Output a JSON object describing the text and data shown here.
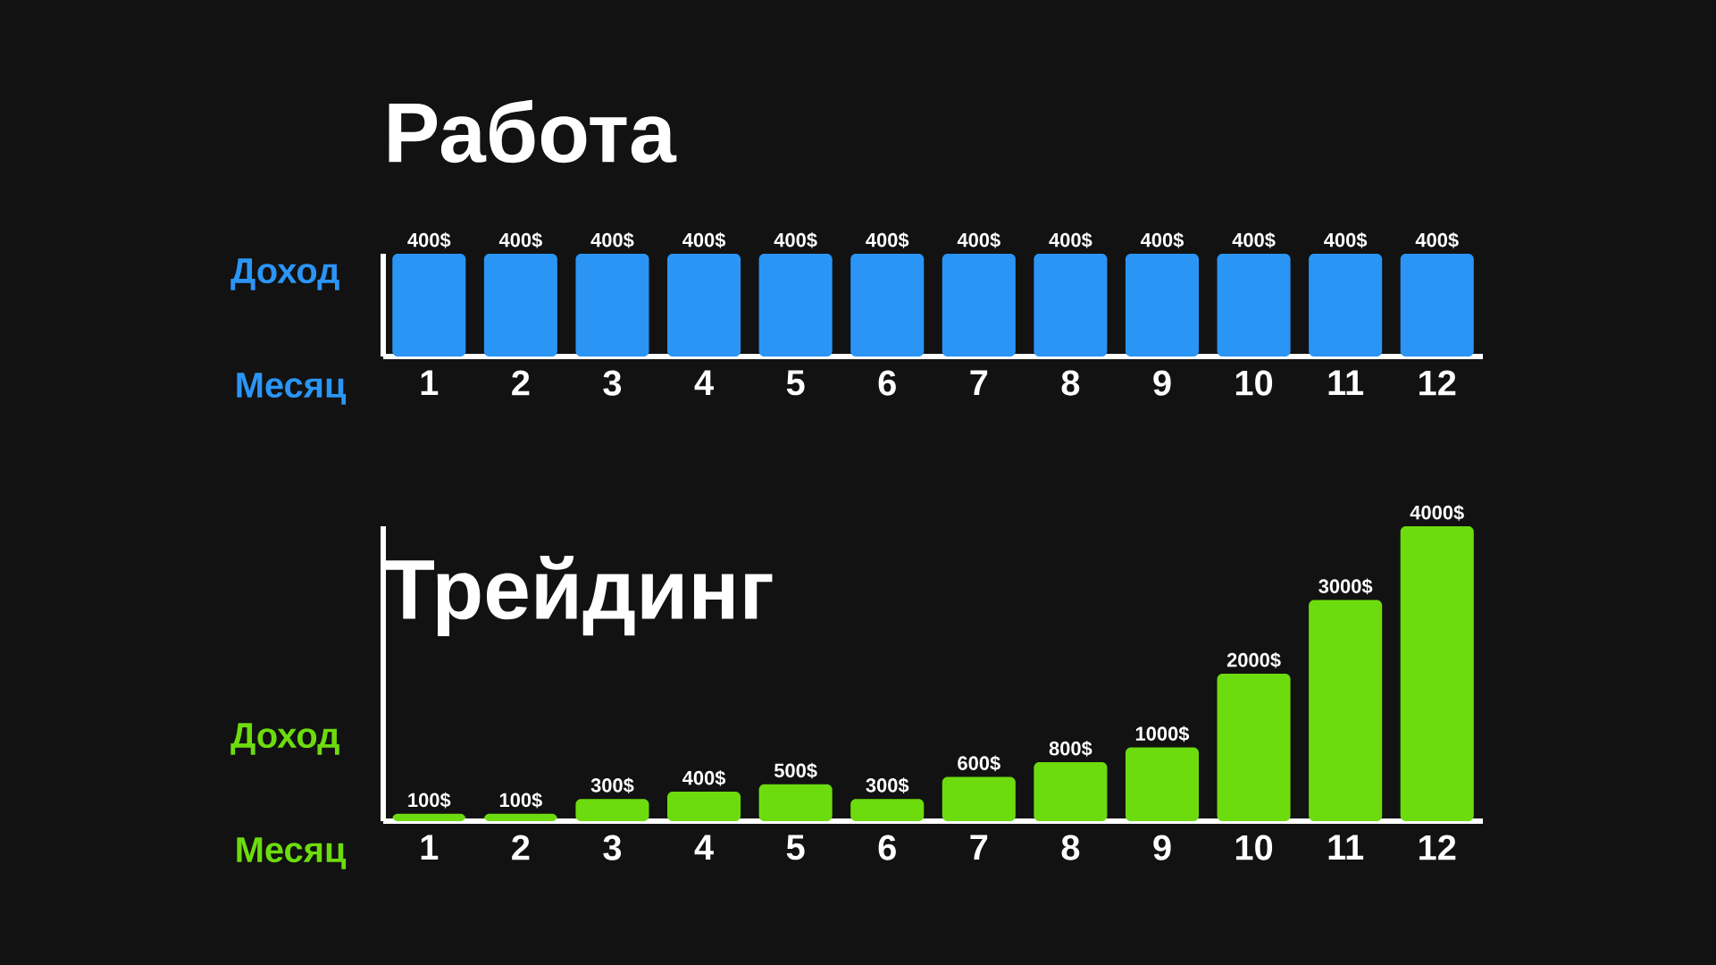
{
  "chart_data": [
    {
      "type": "bar",
      "title": "Работа",
      "ylabel": "Доход",
      "xlabel": "Месяц",
      "categories": [
        "1",
        "2",
        "3",
        "4",
        "5",
        "6",
        "7",
        "8",
        "9",
        "10",
        "11",
        "12"
      ],
      "color": "#2b95f6",
      "values": [
        400,
        400,
        400,
        400,
        400,
        400,
        400,
        400,
        400,
        400,
        400,
        400
      ],
      "value_labels": [
        "400$",
        "400$",
        "400$",
        "400$",
        "400$",
        "400$",
        "400$",
        "400$",
        "400$",
        "400$",
        "400$",
        "400$"
      ]
    },
    {
      "type": "bar",
      "title": "Трейдинг",
      "ylabel": "Доход",
      "xlabel": "Месяц",
      "categories": [
        "1",
        "2",
        "3",
        "4",
        "5",
        "6",
        "7",
        "8",
        "9",
        "10",
        "11",
        "12"
      ],
      "color": "#6ddc0e",
      "values": [
        100,
        100,
        300,
        400,
        500,
        300,
        600,
        800,
        1000,
        2000,
        3000,
        4000
      ],
      "value_labels": [
        "100$",
        "100$",
        "300$",
        "400$",
        "500$",
        "300$",
        "600$",
        "800$",
        "1000$",
        "2000$",
        "3000$",
        "4000$"
      ]
    }
  ]
}
